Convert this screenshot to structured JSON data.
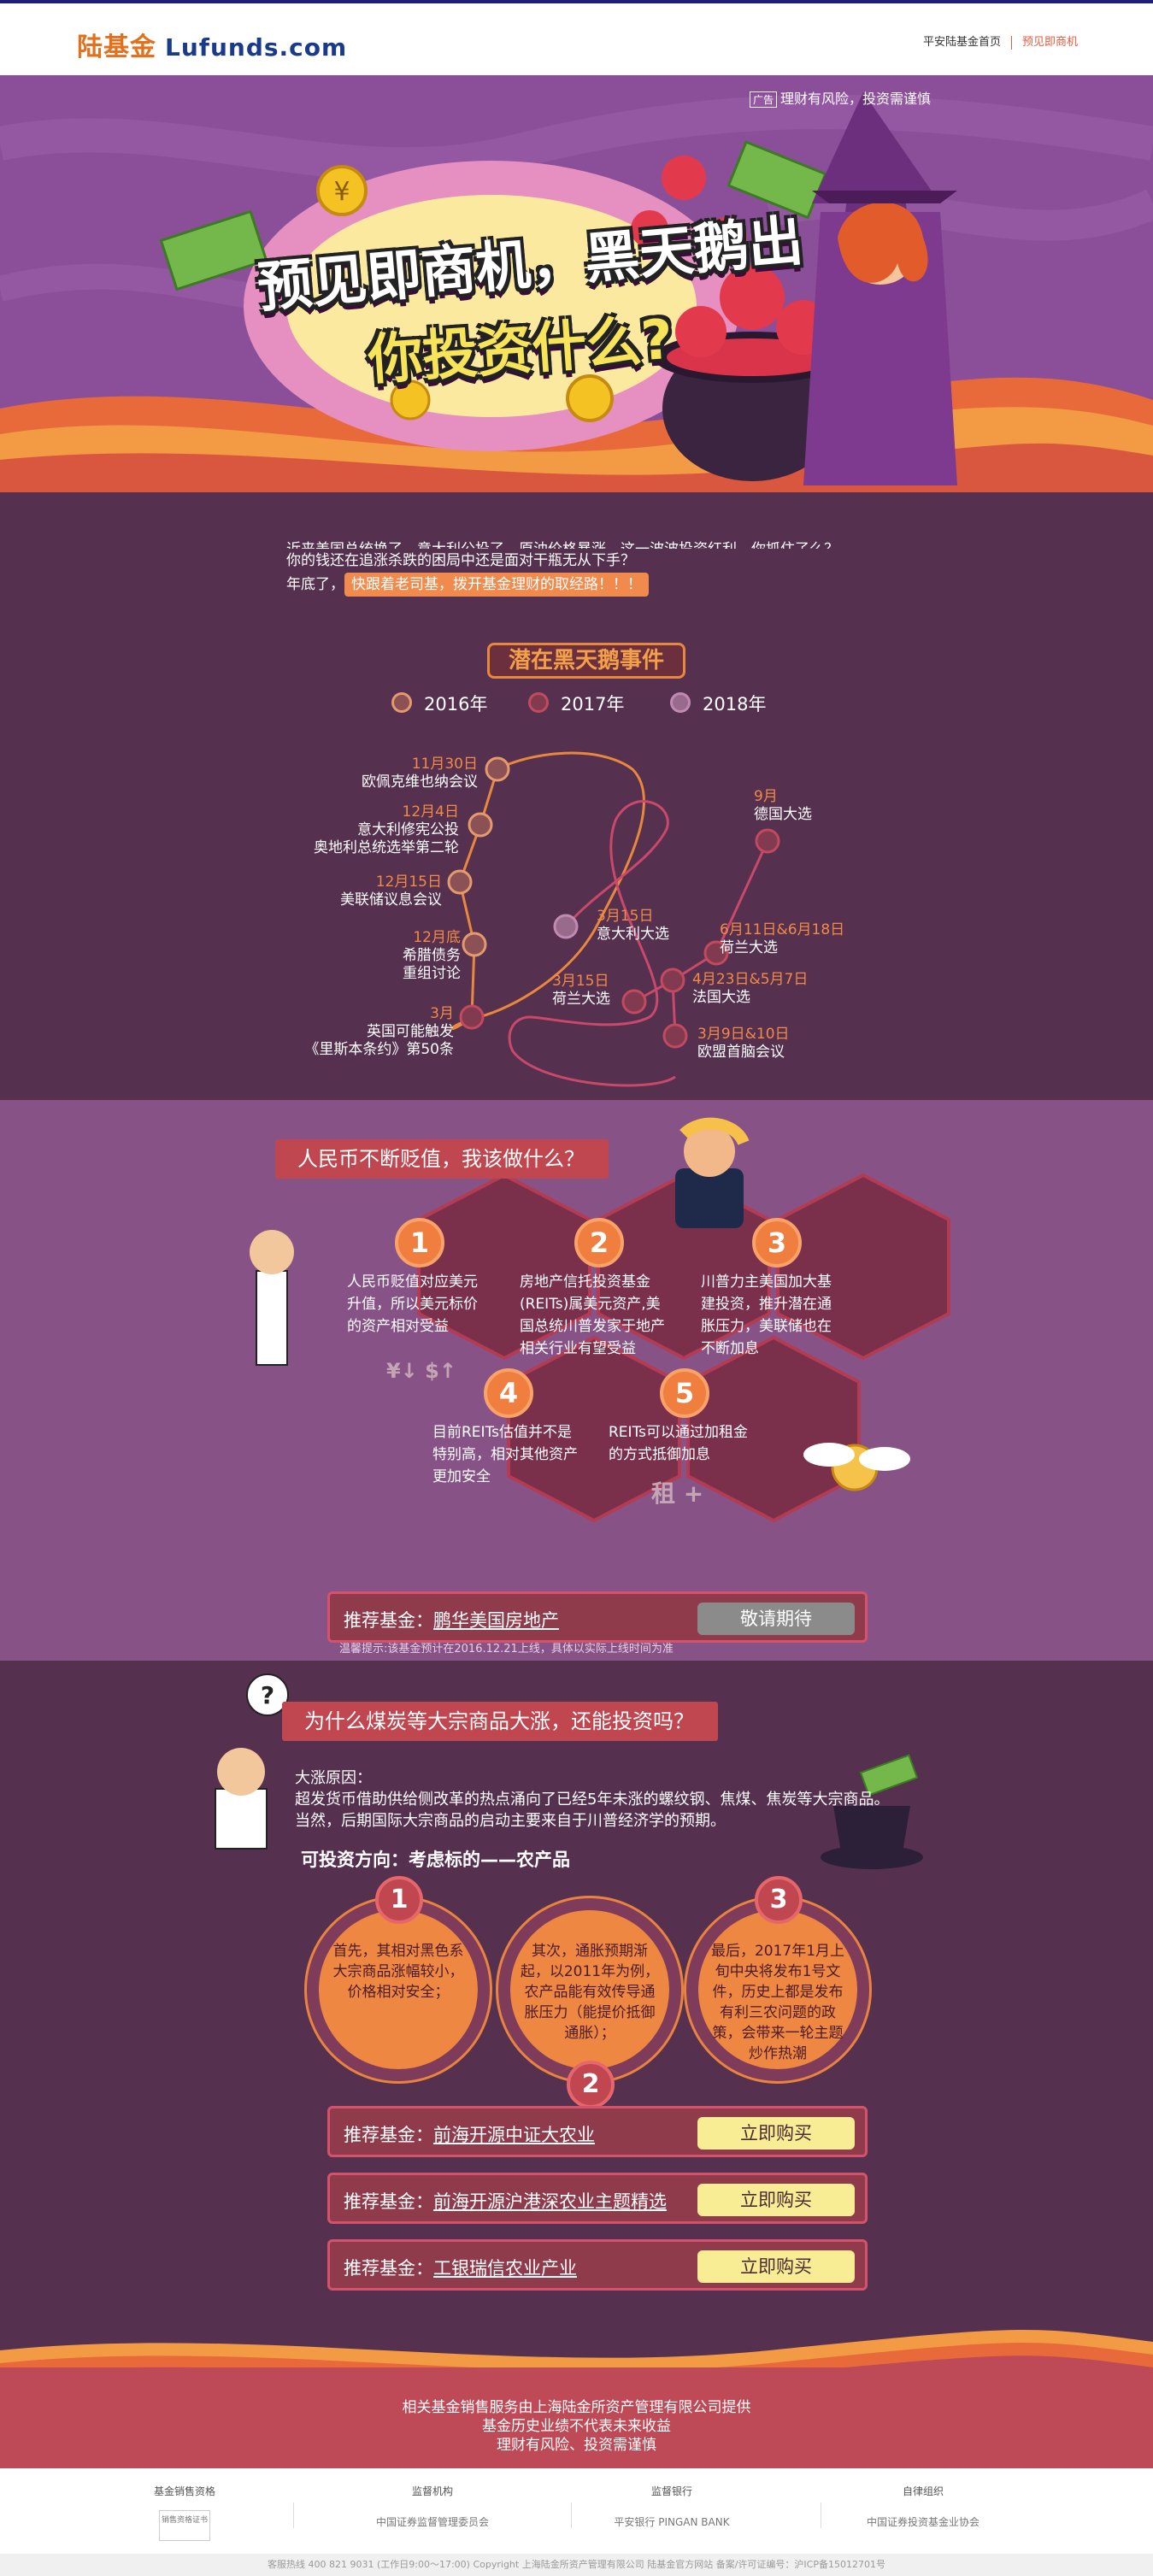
{
  "header": {
    "logo_cn": "陆基金",
    "logo_en": "Lufunds.com",
    "links": [
      "平安陆基金首页",
      "预见即商机"
    ]
  },
  "hero": {
    "ad_tag": "广告",
    "ad_text": "理财有风险，投资需谨慎",
    "title_line1": "预见即商机，黑天鹅出",
    "title_line2": "你投资什么?"
  },
  "intro": {
    "line1": "近来美国总统换了，意大利公投了，原油价格暴涨，这一波波投资红利，你抓住了么？",
    "line2": "你的钱还在追涨杀跌的困局中还是面对干瓶无从下手？",
    "line3_prefix": "年底了，",
    "line3_highlight": "快跟着老司基，拨开基金理财的取经路！！！"
  },
  "blackswan": {
    "heading": "潜在黑天鹅事件",
    "legend": [
      "2016年",
      "2017年",
      "2018年"
    ],
    "events_2016": [
      {
        "date": "11月30日",
        "lines": [
          "欧佩克维也纳会议"
        ]
      },
      {
        "date": "12月4日",
        "lines": [
          "意大利修宪公投",
          "奥地利总统选举第二轮"
        ]
      },
      {
        "date": "12月15日",
        "lines": [
          "美联储议息会议"
        ]
      },
      {
        "date": "12月底",
        "lines": [
          "希腊债务",
          "重组讨论"
        ]
      }
    ],
    "events_2017": [
      {
        "date": "3月",
        "lines": [
          "英国可能触发",
          "《里斯本条约》第50条"
        ]
      },
      {
        "date": "3月15日",
        "lines": [
          "意大利大选"
        ]
      },
      {
        "date": "3月15日",
        "lines": [
          "荷兰大选"
        ]
      },
      {
        "date": "3月9日&10日",
        "lines": [
          "欧盟首脑会议"
        ]
      },
      {
        "date": "4月23日&5月7日",
        "lines": [
          "法国大选"
        ]
      },
      {
        "date": "6月11日&6月18日",
        "lines": [
          "荷兰大选"
        ]
      },
      {
        "date": "9月",
        "lines": [
          "德国大选"
        ]
      }
    ]
  },
  "rmb": {
    "question": "人民币不断贬值，我该做什么？",
    "items": [
      {
        "num": "1",
        "lines": [
          "人民币贬值对应美元",
          "升值，所以美元标价",
          "的资产相对受益"
        ],
        "glyph": "¥↓ $↑"
      },
      {
        "num": "2",
        "lines": [
          "房地产信托投资基金",
          "(REITs)属美元资产,美",
          "国总统川普发家于地产",
          "相关行业有望受益"
        ]
      },
      {
        "num": "3",
        "lines": [
          "川普力主美国加大基",
          "建投资，推升潜在通",
          "胀压力，美联储也在",
          "不断加息"
        ]
      },
      {
        "num": "4",
        "lines": [
          "目前REITs估值并不是",
          "特别高，相对其他资产",
          "更加安全"
        ]
      },
      {
        "num": "5",
        "lines": [
          "REITs可以通过加租金",
          "的方式抵御加息"
        ],
        "glyph": "租 +"
      }
    ],
    "fund_label": "推荐基金：",
    "fund_name": "鹏华美国房地产",
    "fund_button": "敬请期待",
    "tip": "温馨提示:该基金预计在2016.12.21上线，具体以实际上线时间为准"
  },
  "coal": {
    "question": "为什么煤炭等大宗商品大涨，还能投资吗？",
    "reason_title": "大涨原因：",
    "reason_line1": "超发货币借助供给侧改革的热点涌向了已经5年未涨的螺纹钢、焦煤、焦炭等大宗商品。",
    "reason_line2": "当然，后期国际大宗商品的启动主要来自于川普经济学的预期。",
    "direction": "可投资方向：考虑标的——农产品",
    "circles": [
      {
        "num": "1",
        "text": "首先，其相对黑色系大宗商品涨幅较小，价格相对安全；"
      },
      {
        "num": "2",
        "text": "其次，通胀预期渐起，以2011年为例，农产品能有效传导通胀压力（能提价抵御通胀）；"
      },
      {
        "num": "3",
        "text": "最后，2017年1月上旬中央将发布1号文件，历史上都是发布有利三农问题的政策，会带来一轮主题炒作热潮"
      }
    ],
    "funds": [
      {
        "label": "推荐基金：",
        "name": "前海开源中证大农业",
        "button": "立即购买"
      },
      {
        "label": "推荐基金：",
        "name": "前海开源沪港深农业主题精选",
        "button": "立即购买"
      },
      {
        "label": "推荐基金：",
        "name": "工银瑞信农业产业",
        "button": "立即购买"
      }
    ]
  },
  "footer": {
    "line1": "相关基金销售服务由上海陆金所资产管理有限公司提供",
    "line2": "基金历史业绩不代表未来收益",
    "line3": "理财有风险、投资需谨慎",
    "cols": [
      {
        "title": "基金销售资格",
        "logo": "销售资格证书"
      },
      {
        "title": "监督机构",
        "logo": "中国证券监督管理委员会"
      },
      {
        "title": "监督银行",
        "logo": "平安银行 PINGAN BANK"
      },
      {
        "title": "自律组织",
        "logo": "中国证券投资基金业协会"
      }
    ],
    "copyright": "客服热线 400 821 9031 (工作日9:00～17:00)    Copyright 上海陆金所资产管理有限公司 陆基金官方网站 备案/许可证编号：沪ICP备15012701号"
  }
}
